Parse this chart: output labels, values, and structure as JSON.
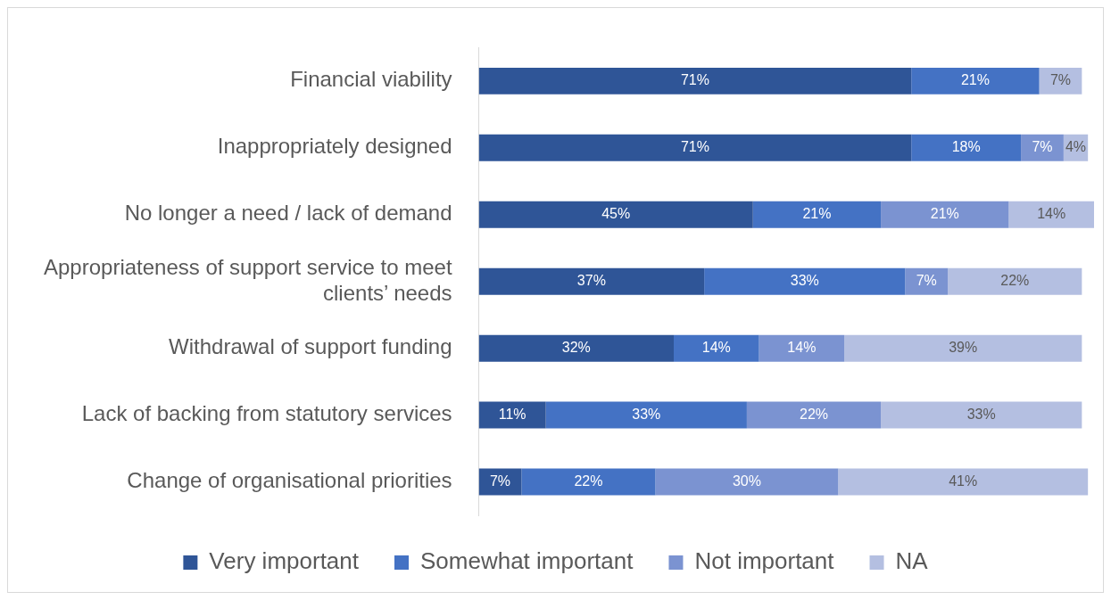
{
  "chart_data": {
    "type": "bar",
    "orientation": "horizontal",
    "stacked": true,
    "legend": "bottom",
    "categories": [
      "Financial viability",
      "Inappropriately designed",
      "No longer a need / lack of demand",
      "Appropriateness of support service to meet clients’ needs",
      "Withdrawal of support funding",
      "Lack of backing from statutory services",
      "Change of organisational priorities"
    ],
    "series": [
      {
        "name": "Very important",
        "color": "#2f5597",
        "values": [
          71,
          71,
          45,
          37,
          32,
          11,
          7
        ],
        "value_labels": [
          "71%",
          "71%",
          "45%",
          "37%",
          "32%",
          "11%",
          "7%"
        ]
      },
      {
        "name": "Somewhat important",
        "color": "#4472c4",
        "values": [
          21,
          18,
          21,
          33,
          14,
          33,
          22
        ],
        "value_labels": [
          "21%",
          "18%",
          "21%",
          "33%",
          "14%",
          "33%",
          "22%"
        ]
      },
      {
        "name": "Not important",
        "color": "#7b93d1",
        "values": [
          null,
          7,
          21,
          7,
          14,
          22,
          30
        ],
        "value_labels": [
          null,
          "7%",
          "21%",
          "7%",
          "14%",
          "22%",
          "30%"
        ]
      },
      {
        "name": "NA",
        "color": "#b4bfe1",
        "values": [
          7,
          4,
          14,
          22,
          39,
          33,
          41
        ],
        "value_labels": [
          "7%",
          "4%",
          "14%",
          "22%",
          "39%",
          "33%",
          "41%"
        ]
      }
    ]
  }
}
